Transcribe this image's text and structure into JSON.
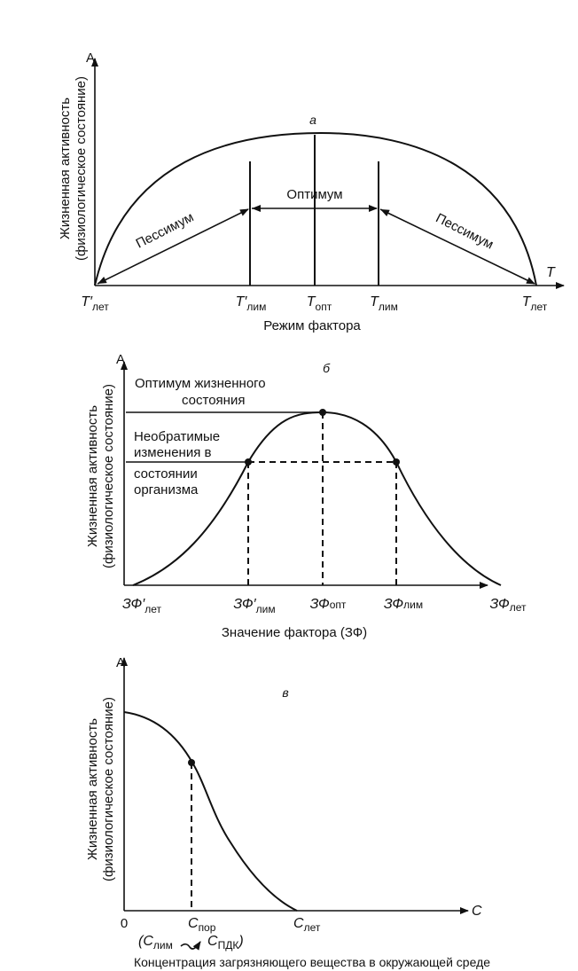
{
  "panel_a": {
    "letter": "а",
    "y_axis_letter": "А",
    "y_label_1": "Жизненная активность",
    "y_label_2": "(физиологическое состояние)",
    "x_axis_letter": "T",
    "x_label": "Режим фактора",
    "optimum": "Оптимум",
    "pessimum_left": "Пессимум",
    "pessimum_right": "Пессимум",
    "ticks": [
      {
        "main": "T′",
        "sub": "лет"
      },
      {
        "main": "T′",
        "sub": "лим"
      },
      {
        "main": "T",
        "sub": "опт"
      },
      {
        "main": "T",
        "sub": "лим"
      },
      {
        "main": "T",
        "sub": "лет"
      }
    ]
  },
  "panel_b": {
    "letter": "б",
    "y_axis_letter": "А",
    "y_label_1": "Жизненная активность",
    "y_label_2": "(физиологическое состояние)",
    "optimum_label_1": "Оптимум жизненного",
    "optimum_label_2": "состояния",
    "irreversible_lines": [
      "Необратимые",
      "изменения в",
      "состоянии",
      "организма"
    ],
    "x_label": "Значение фактора (ЗФ)",
    "ticks": [
      {
        "main": "ЗФ′",
        "sub": "лет"
      },
      {
        "main": "ЗФ′",
        "sub": "лим"
      },
      {
        "main": "ЗФ",
        "sub": "опт"
      },
      {
        "main": "ЗФ",
        "sub": "лим"
      },
      {
        "main": "ЗФ",
        "sub": "лет"
      }
    ]
  },
  "panel_c": {
    "letter": "в",
    "y_axis_letter": "А",
    "y_label_1": "Жизненная активность",
    "y_label_2": "(физиологическое состояние)",
    "x_axis_letter": "C",
    "origin": "0",
    "ticks": [
      {
        "main": "C",
        "sub": "пор"
      },
      {
        "main": "C",
        "sub": "лет"
      }
    ],
    "note": {
      "open": "(C",
      "sub1": "лим",
      "mid": "C",
      "sub2": "ПДК",
      "close": ")"
    },
    "x_label": "Концентрация загрязняющего вещества в окружающей среде"
  }
}
